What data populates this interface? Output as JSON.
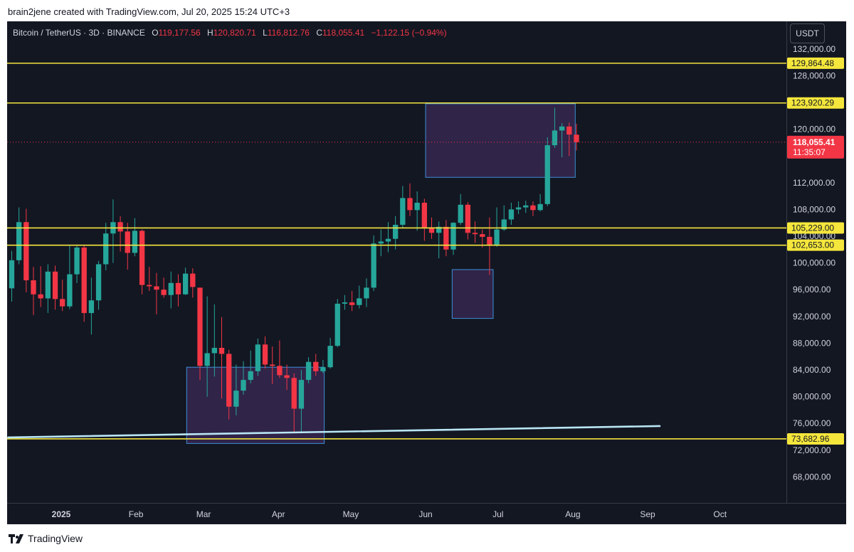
{
  "attribution": "brain2jene created with TradingView.com, Jul 20, 2025 15:24 UTC+3",
  "legend": {
    "symbol": "Bitcoin / TetherUS · 3D · BINANCE",
    "o_label": "O",
    "o_value": "119,177.56",
    "h_label": "H",
    "h_value": "120,820.71",
    "l_label": "L",
    "l_value": "116,812.76",
    "c_label": "C",
    "c_value": "118,055.41",
    "change": "−1,122.15 (−0.94%)"
  },
  "currency_button": "USDT",
  "footer_brand": "TradingView",
  "colors": {
    "background": "#131722",
    "up": "#26a69a",
    "down": "#f23645",
    "level_line": "#f5e63c",
    "zone_fill": "#3b2a55",
    "zone_border": "#3d8fd6",
    "trendline": "#b9e6f5",
    "axis_text": "#d1d4dc"
  },
  "chart_data": {
    "type": "candlestick",
    "symbol": "BTCUSDT",
    "interval": "3D",
    "ylim": [
      64000,
      134000
    ],
    "y_ticks": [
      "132,000.00",
      "128,000.00",
      "120,000.00",
      "112,000.00",
      "108,000.00",
      "104,000.00",
      "100,000.00",
      "96,000.00",
      "92,000.00",
      "88,000.00",
      "84,000.00",
      "80,000.00",
      "76,000.00",
      "72,000.00",
      "68,000.00"
    ],
    "x_ticks": [
      {
        "label": "2025",
        "date": "2025-01-01",
        "bold": true
      },
      {
        "label": "Feb",
        "date": "2025-02-01"
      },
      {
        "label": "Mar",
        "date": "2025-03-01"
      },
      {
        "label": "Apr",
        "date": "2025-04-01"
      },
      {
        "label": "May",
        "date": "2025-05-01"
      },
      {
        "label": "Jun",
        "date": "2025-06-01"
      },
      {
        "label": "Jul",
        "date": "2025-07-01"
      },
      {
        "label": "Aug",
        "date": "2025-08-01"
      },
      {
        "label": "Sep",
        "date": "2025-09-01"
      },
      {
        "label": "Oct",
        "date": "2025-10-01"
      }
    ],
    "horizontal_levels": [
      {
        "label": "129,864.48",
        "value": 129864.48
      },
      {
        "label": "123,920.29",
        "value": 123920.29
      },
      {
        "label": "105,229.00",
        "value": 105229.0
      },
      {
        "label": "102,653.00",
        "value": 102653.0
      },
      {
        "label": "73,682.96",
        "value": 73682.96
      }
    ],
    "last_price": {
      "label": "118,055.41",
      "value": 118055.41,
      "countdown": "11:35:07"
    },
    "zones": [
      {
        "start": "2025-02-22",
        "end": "2025-04-20",
        "top": 84400,
        "bottom": 73000
      },
      {
        "start": "2025-06-01",
        "end": "2025-08-02",
        "top": 123800,
        "bottom": 112800
      },
      {
        "start": "2025-06-12",
        "end": "2025-06-29",
        "top": 99000,
        "bottom": 91700
      }
    ],
    "trendline": [
      {
        "date": "2024-12-10",
        "value": 73900
      },
      {
        "date": "2025-09-06",
        "value": 75600
      }
    ],
    "candles": [
      {
        "date": "2024-12-10",
        "o": 96200,
        "h": 101800,
        "l": 94200,
        "c": 100400
      },
      {
        "date": "2024-12-13",
        "o": 100400,
        "h": 108300,
        "l": 99800,
        "c": 106100
      },
      {
        "date": "2024-12-16",
        "o": 106100,
        "h": 108100,
        "l": 95600,
        "c": 97400
      },
      {
        "date": "2024-12-19",
        "o": 97400,
        "h": 99400,
        "l": 92200,
        "c": 95300
      },
      {
        "date": "2024-12-22",
        "o": 95300,
        "h": 99500,
        "l": 93400,
        "c": 94700
      },
      {
        "date": "2024-12-25",
        "o": 94700,
        "h": 99800,
        "l": 92500,
        "c": 98700
      },
      {
        "date": "2024-12-28",
        "o": 98700,
        "h": 99600,
        "l": 93000,
        "c": 94600
      },
      {
        "date": "2024-12-31",
        "o": 94600,
        "h": 97500,
        "l": 92800,
        "c": 93500
      },
      {
        "date": "2025-01-03",
        "o": 93500,
        "h": 102700,
        "l": 93100,
        "c": 98300
      },
      {
        "date": "2025-01-06",
        "o": 98300,
        "h": 102600,
        "l": 97000,
        "c": 102300
      },
      {
        "date": "2025-01-09",
        "o": 102300,
        "h": 102700,
        "l": 91200,
        "c": 92500
      },
      {
        "date": "2025-01-12",
        "o": 92500,
        "h": 97800,
        "l": 89300,
        "c": 94400
      },
      {
        "date": "2025-01-15",
        "o": 94400,
        "h": 100300,
        "l": 93000,
        "c": 99800
      },
      {
        "date": "2025-01-18",
        "o": 99800,
        "h": 106000,
        "l": 98900,
        "c": 104400
      },
      {
        "date": "2025-01-21",
        "o": 104400,
        "h": 109500,
        "l": 100000,
        "c": 106100
      },
      {
        "date": "2025-01-24",
        "o": 106100,
        "h": 107000,
        "l": 101700,
        "c": 104700
      },
      {
        "date": "2025-01-27",
        "o": 104700,
        "h": 106000,
        "l": 99000,
        "c": 101500
      },
      {
        "date": "2025-01-30",
        "o": 101500,
        "h": 106700,
        "l": 101000,
        "c": 104800
      },
      {
        "date": "2025-02-02",
        "o": 104800,
        "h": 105000,
        "l": 95300,
        "c": 96700
      },
      {
        "date": "2025-02-05",
        "o": 96700,
        "h": 99400,
        "l": 95800,
        "c": 96500
      },
      {
        "date": "2025-02-08",
        "o": 96500,
        "h": 98500,
        "l": 92300,
        "c": 96000
      },
      {
        "date": "2025-02-11",
        "o": 96000,
        "h": 97800,
        "l": 94800,
        "c": 95200
      },
      {
        "date": "2025-02-14",
        "o": 95200,
        "h": 98700,
        "l": 93200,
        "c": 97000
      },
      {
        "date": "2025-02-17",
        "o": 97000,
        "h": 98300,
        "l": 93500,
        "c": 95300
      },
      {
        "date": "2025-02-20",
        "o": 95300,
        "h": 99300,
        "l": 95200,
        "c": 98400
      },
      {
        "date": "2025-02-23",
        "o": 98400,
        "h": 99200,
        "l": 94800,
        "c": 96400
      },
      {
        "date": "2025-02-26",
        "o": 96300,
        "h": 96300,
        "l": 82500,
        "c": 84600
      },
      {
        "date": "2025-03-01",
        "o": 84600,
        "h": 95000,
        "l": 80000,
        "c": 86500
      },
      {
        "date": "2025-03-04",
        "o": 86500,
        "h": 93800,
        "l": 83000,
        "c": 87300
      },
      {
        "date": "2025-03-07",
        "o": 87300,
        "h": 91900,
        "l": 79700,
        "c": 86400
      },
      {
        "date": "2025-03-10",
        "o": 86400,
        "h": 87000,
        "l": 76600,
        "c": 78500
      },
      {
        "date": "2025-03-13",
        "o": 78500,
        "h": 84800,
        "l": 77200,
        "c": 80900
      },
      {
        "date": "2025-03-16",
        "o": 80900,
        "h": 85300,
        "l": 80300,
        "c": 82500
      },
      {
        "date": "2025-03-19",
        "o": 82500,
        "h": 86900,
        "l": 82000,
        "c": 83800
      },
      {
        "date": "2025-03-22",
        "o": 83800,
        "h": 88700,
        "l": 83100,
        "c": 87800
      },
      {
        "date": "2025-03-25",
        "o": 87800,
        "h": 89000,
        "l": 84200,
        "c": 84800
      },
      {
        "date": "2025-03-28",
        "o": 84800,
        "h": 87500,
        "l": 81900,
        "c": 84600
      },
      {
        "date": "2025-03-31",
        "o": 84600,
        "h": 88400,
        "l": 82800,
        "c": 83200
      },
      {
        "date": "2025-04-03",
        "o": 83200,
        "h": 84800,
        "l": 81000,
        "c": 82800
      },
      {
        "date": "2025-04-06",
        "o": 82800,
        "h": 83500,
        "l": 74600,
        "c": 78200
      },
      {
        "date": "2025-04-09",
        "o": 78200,
        "h": 84000,
        "l": 74500,
        "c": 82500
      },
      {
        "date": "2025-04-12",
        "o": 82500,
        "h": 85900,
        "l": 82000,
        "c": 85200
      },
      {
        "date": "2025-04-15",
        "o": 85200,
        "h": 86400,
        "l": 83100,
        "c": 83800
      },
      {
        "date": "2025-04-18",
        "o": 83800,
        "h": 85500,
        "l": 83500,
        "c": 84400
      },
      {
        "date": "2025-04-21",
        "o": 84400,
        "h": 88800,
        "l": 84200,
        "c": 87600
      },
      {
        "date": "2025-04-24",
        "o": 87600,
        "h": 94600,
        "l": 87400,
        "c": 93900
      },
      {
        "date": "2025-04-27",
        "o": 93900,
        "h": 95200,
        "l": 93000,
        "c": 94100
      },
      {
        "date": "2025-04-30",
        "o": 94100,
        "h": 95800,
        "l": 92800,
        "c": 93700
      },
      {
        "date": "2025-05-03",
        "o": 93700,
        "h": 96600,
        "l": 93200,
        "c": 94700
      },
      {
        "date": "2025-05-06",
        "o": 94700,
        "h": 97700,
        "l": 93400,
        "c": 96300
      },
      {
        "date": "2025-05-09",
        "o": 96300,
        "h": 104100,
        "l": 95800,
        "c": 102900
      },
      {
        "date": "2025-05-12",
        "o": 102900,
        "h": 105000,
        "l": 101000,
        "c": 103200
      },
      {
        "date": "2025-05-15",
        "o": 103200,
        "h": 106100,
        "l": 101600,
        "c": 103600
      },
      {
        "date": "2025-05-18",
        "o": 103600,
        "h": 107000,
        "l": 102000,
        "c": 105700
      },
      {
        "date": "2025-05-21",
        "o": 105700,
        "h": 111500,
        "l": 105200,
        "c": 109700
      },
      {
        "date": "2025-05-24",
        "o": 109700,
        "h": 111900,
        "l": 107000,
        "c": 107900
      },
      {
        "date": "2025-05-27",
        "o": 107900,
        "h": 110700,
        "l": 104800,
        "c": 109000
      },
      {
        "date": "2025-05-30",
        "o": 109000,
        "h": 109600,
        "l": 103300,
        "c": 105300
      },
      {
        "date": "2025-06-02",
        "o": 105300,
        "h": 106800,
        "l": 103600,
        "c": 104500
      },
      {
        "date": "2025-06-05",
        "o": 104500,
        "h": 106200,
        "l": 100700,
        "c": 105400
      },
      {
        "date": "2025-06-08",
        "o": 105400,
        "h": 106400,
        "l": 101000,
        "c": 102000
      },
      {
        "date": "2025-06-11",
        "o": 102000,
        "h": 106100,
        "l": 101200,
        "c": 106000
      },
      {
        "date": "2025-06-14",
        "o": 106000,
        "h": 110300,
        "l": 105700,
        "c": 108700
      },
      {
        "date": "2025-06-17",
        "o": 108700,
        "h": 109100,
        "l": 103500,
        "c": 104500
      },
      {
        "date": "2025-06-20",
        "o": 104500,
        "h": 106200,
        "l": 103000,
        "c": 104300
      },
      {
        "date": "2025-06-23",
        "o": 104300,
        "h": 105000,
        "l": 102300,
        "c": 103900
      },
      {
        "date": "2025-06-26",
        "o": 103900,
        "h": 106800,
        "l": 98200,
        "c": 102700
      },
      {
        "date": "2025-06-29",
        "o": 102700,
        "h": 108300,
        "l": 102400,
        "c": 105000
      },
      {
        "date": "2025-07-02",
        "o": 105000,
        "h": 108600,
        "l": 104800,
        "c": 106500
      },
      {
        "date": "2025-07-05",
        "o": 106500,
        "h": 109000,
        "l": 105700,
        "c": 108000
      },
      {
        "date": "2025-07-08",
        "o": 108000,
        "h": 109200,
        "l": 107300,
        "c": 108300
      },
      {
        "date": "2025-07-11",
        "o": 108300,
        "h": 109300,
        "l": 107500,
        "c": 108600
      },
      {
        "date": "2025-07-14",
        "o": 108600,
        "h": 109200,
        "l": 107000,
        "c": 107900
      },
      {
        "date": "2025-07-17",
        "o": 107900,
        "h": 110300,
        "l": 107700,
        "c": 108800
      },
      {
        "date": "2025-07-20",
        "o": 108800,
        "h": 118800,
        "l": 108500,
        "c": 117600
      },
      {
        "date": "2025-07-23",
        "o": 117600,
        "h": 123200,
        "l": 117200,
        "c": 119800
      },
      {
        "date": "2025-07-26",
        "o": 119800,
        "h": 120900,
        "l": 115800,
        "c": 120400
      },
      {
        "date": "2025-07-29",
        "o": 120400,
        "h": 121000,
        "l": 116000,
        "c": 119200
      },
      {
        "date": "2025-08-01",
        "o": 119177.56,
        "h": 120820.71,
        "l": 116812.76,
        "c": 118055.41
      }
    ]
  }
}
